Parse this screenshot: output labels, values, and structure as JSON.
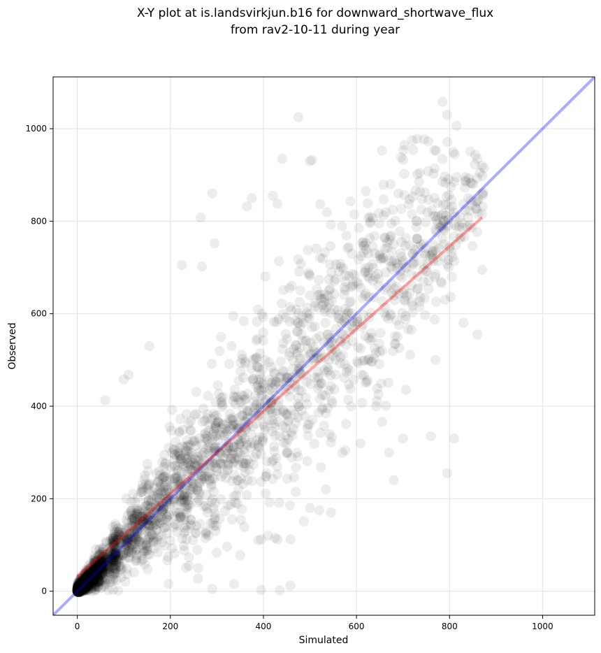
{
  "chart_data": {
    "type": "scatter",
    "title_line1": "X-Y plot at is.landsvirkjun.b16 for downward_shortwave_flux",
    "title_line2": "from rav2-10-11 during year",
    "xlabel": "Simulated",
    "ylabel": "Observed",
    "xlim": [
      -52,
      1112
    ],
    "ylim": [
      -52,
      1112
    ],
    "xticks": [
      0,
      200,
      400,
      600,
      800,
      1000
    ],
    "yticks": [
      0,
      200,
      400,
      600,
      800,
      1000
    ],
    "grid": true,
    "point_color": "#000000",
    "point_opacity": 0.07,
    "identity_line": {
      "name": "1:1",
      "x": [
        -52,
        1112
      ],
      "y": [
        -52,
        1112
      ],
      "color": "#0000ff",
      "opacity": 0.33
    },
    "regression_line": {
      "name": "fit",
      "x": [
        0,
        870
      ],
      "y": [
        32,
        808
      ],
      "color": "#ff0000",
      "opacity": 0.35
    },
    "cloud": [
      [
        0,
        0,
        4,
        500
      ],
      [
        4,
        4,
        5,
        350
      ],
      [
        12,
        12,
        9,
        300
      ],
      [
        30,
        30,
        14,
        260
      ],
      [
        60,
        60,
        22,
        220
      ],
      [
        100,
        100,
        35,
        180
      ],
      [
        150,
        150,
        50,
        170
      ],
      [
        200,
        200,
        60,
        150
      ],
      [
        250,
        250,
        70,
        140
      ],
      [
        300,
        300,
        85,
        130
      ],
      [
        350,
        350,
        95,
        120
      ],
      [
        400,
        400,
        105,
        110
      ],
      [
        450,
        450,
        115,
        100
      ],
      [
        500,
        500,
        120,
        95
      ],
      [
        550,
        550,
        125,
        90
      ],
      [
        600,
        600,
        125,
        85
      ],
      [
        650,
        650,
        120,
        80
      ],
      [
        700,
        700,
        110,
        75
      ],
      [
        750,
        750,
        100,
        70
      ],
      [
        800,
        800,
        85,
        60
      ],
      [
        850,
        850,
        60,
        40
      ]
    ],
    "outliers": [
      [
        475,
        1025
      ],
      [
        785,
        1058
      ],
      [
        795,
        1030
      ],
      [
        720,
        975
      ],
      [
        730,
        978
      ],
      [
        440,
        935
      ],
      [
        500,
        930
      ],
      [
        290,
        860
      ],
      [
        420,
        855
      ],
      [
        375,
        850
      ],
      [
        365,
        832
      ],
      [
        430,
        838
      ],
      [
        690,
        860
      ],
      [
        620,
        865
      ],
      [
        870,
        860
      ],
      [
        860,
        935
      ],
      [
        865,
        905
      ],
      [
        815,
        895
      ],
      [
        810,
        885
      ],
      [
        265,
        808
      ],
      [
        295,
        752
      ],
      [
        225,
        705
      ],
      [
        268,
        702
      ],
      [
        155,
        530
      ],
      [
        100,
        458
      ],
      [
        110,
        468
      ],
      [
        60,
        413
      ],
      [
        810,
        330
      ],
      [
        760,
        335
      ],
      [
        680,
        240
      ],
      [
        795,
        255
      ],
      [
        500,
        180
      ],
      [
        520,
        175
      ],
      [
        545,
        170
      ],
      [
        410,
        120
      ],
      [
        425,
        115
      ],
      [
        430,
        112
      ],
      [
        290,
        5
      ],
      [
        395,
        3
      ],
      [
        435,
        2
      ],
      [
        458,
        12
      ],
      [
        350,
        78
      ],
      [
        395,
        112
      ],
      [
        230,
        155
      ],
      [
        260,
        50
      ],
      [
        240,
        55
      ],
      [
        670,
        300
      ],
      [
        830,
        580
      ],
      [
        770,
        500
      ],
      [
        860,
        555
      ],
      [
        870,
        695
      ],
      [
        700,
        330
      ]
    ]
  }
}
